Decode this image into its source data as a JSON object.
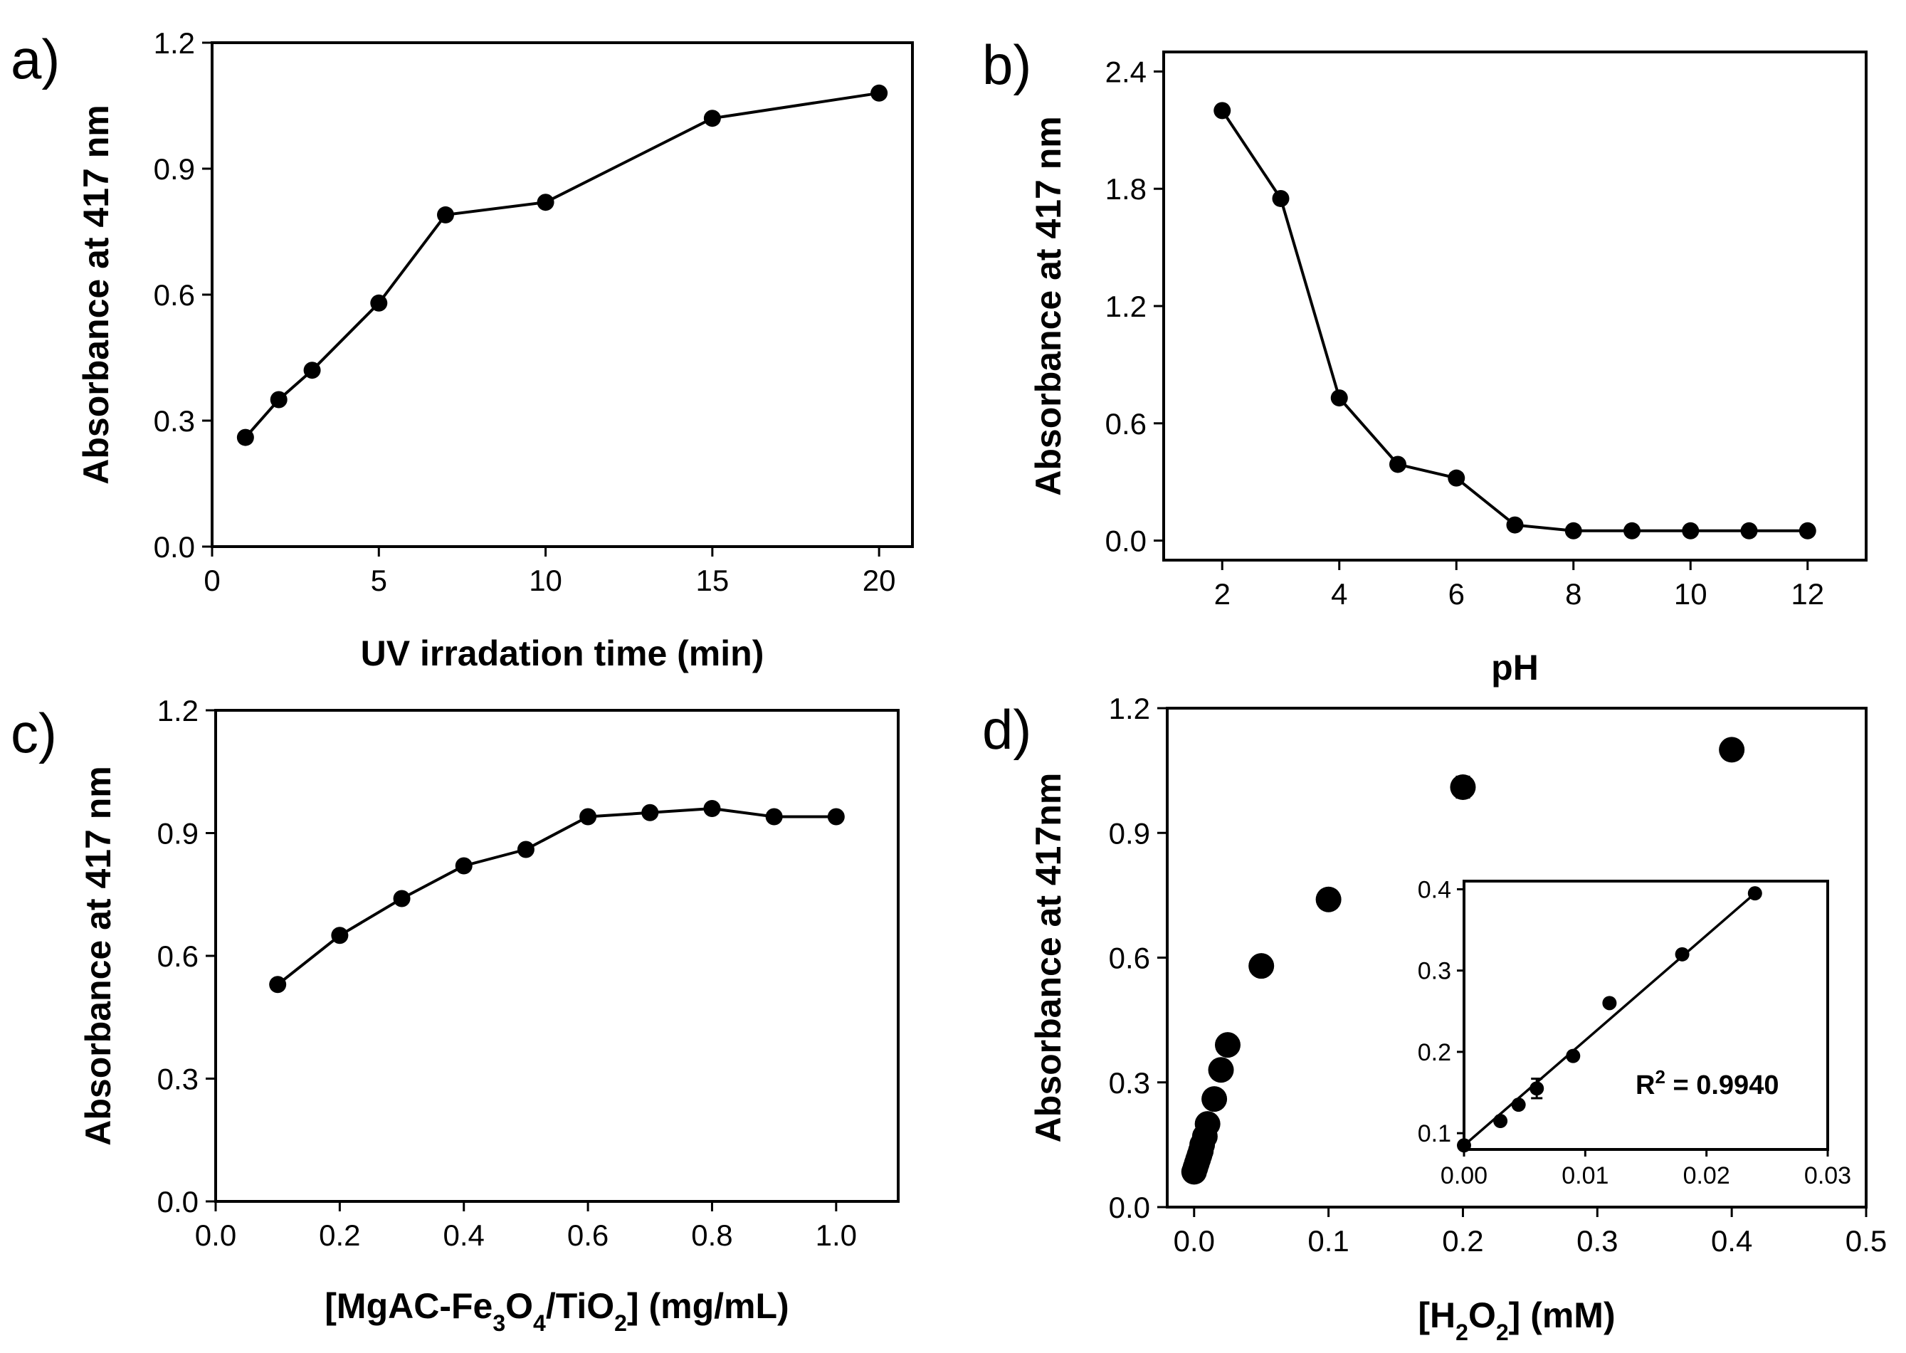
{
  "chart_data": [
    {
      "id": "a",
      "type": "line",
      "panel_label": "a)",
      "title": "",
      "xlabel": "UV irradation time (min)",
      "ylabel": "Absorbance at 417 nm",
      "xlim": [
        0,
        21
      ],
      "ylim": [
        0,
        1.2
      ],
      "xticks": [
        0,
        5,
        10,
        15,
        20
      ],
      "yticks": [
        0.0,
        0.3,
        0.6,
        0.9,
        1.2
      ],
      "xtick_labels": [
        "0",
        "5",
        "10",
        "15",
        "20"
      ],
      "ytick_labels": [
        "0.0",
        "0.3",
        "0.6",
        "0.9",
        "1.2"
      ],
      "connected": true,
      "series": [
        {
          "name": "absorbance",
          "x": [
            1,
            2,
            3,
            5,
            7,
            10,
            15,
            20
          ],
          "y": [
            0.26,
            0.35,
            0.42,
            0.58,
            0.79,
            0.82,
            1.02,
            1.08
          ]
        }
      ]
    },
    {
      "id": "b",
      "type": "line",
      "panel_label": "b)",
      "title": "",
      "xlabel": "pH",
      "ylabel": "Absorbance at 417 nm",
      "xlim": [
        1,
        13
      ],
      "ylim": [
        -0.1,
        2.5
      ],
      "xticks": [
        2,
        4,
        6,
        8,
        10,
        12
      ],
      "yticks": [
        0.0,
        0.6,
        1.2,
        1.8,
        2.4
      ],
      "xtick_labels": [
        "2",
        "4",
        "6",
        "8",
        "10",
        "12"
      ],
      "ytick_labels": [
        "0.0",
        "0.6",
        "1.2",
        "1.8",
        "2.4"
      ],
      "connected": true,
      "series": [
        {
          "name": "absorbance",
          "x": [
            2,
            3,
            4,
            5,
            6,
            7,
            8,
            9,
            10,
            11,
            12
          ],
          "y": [
            2.2,
            1.75,
            0.73,
            0.39,
            0.32,
            0.08,
            0.05,
            0.05,
            0.05,
            0.05,
            0.05
          ]
        }
      ]
    },
    {
      "id": "c",
      "type": "line",
      "panel_label": "c)",
      "title": "",
      "xlabel_parts": [
        {
          "t": "[MgAC-Fe"
        },
        {
          "t": "3",
          "sub": true
        },
        {
          "t": "O"
        },
        {
          "t": "4",
          "sub": true
        },
        {
          "t": "/TiO"
        },
        {
          "t": "2",
          "sub": true
        },
        {
          "t": "] (mg/mL)"
        }
      ],
      "ylabel": "Absorbance at 417 nm",
      "xlim": [
        0,
        1.1
      ],
      "ylim": [
        0,
        1.2
      ],
      "xticks": [
        0,
        0.2,
        0.4,
        0.6,
        0.8,
        1.0
      ],
      "yticks": [
        0.0,
        0.3,
        0.6,
        0.9,
        1.2
      ],
      "xtick_labels": [
        "0.0",
        "0.2",
        "0.4",
        "0.6",
        "0.8",
        "1.0"
      ],
      "ytick_labels": [
        "0.0",
        "0.3",
        "0.6",
        "0.9",
        "1.2"
      ],
      "connected": true,
      "series": [
        {
          "name": "absorbance",
          "x": [
            0.1,
            0.2,
            0.3,
            0.4,
            0.5,
            0.6,
            0.7,
            0.8,
            0.9,
            1.0
          ],
          "y": [
            0.53,
            0.65,
            0.74,
            0.82,
            0.86,
            0.94,
            0.95,
            0.96,
            0.94,
            0.94
          ]
        }
      ]
    },
    {
      "id": "d",
      "type": "scatter",
      "panel_label": "d)",
      "title": "",
      "xlabel_parts": [
        {
          "t": "[H"
        },
        {
          "t": "2",
          "sub": true
        },
        {
          "t": "O"
        },
        {
          "t": "2",
          "sub": true
        },
        {
          "t": "] (mM)"
        }
      ],
      "ylabel": "Absorbance at 417nm",
      "xlim": [
        -0.02,
        0.5
      ],
      "ylim": [
        0,
        1.2
      ],
      "xticks": [
        0,
        0.1,
        0.2,
        0.3,
        0.4,
        0.5
      ],
      "yticks": [
        0.0,
        0.3,
        0.6,
        0.9,
        1.2
      ],
      "xtick_labels": [
        "0.0",
        "0.1",
        "0.2",
        "0.3",
        "0.4",
        "0.5"
      ],
      "ytick_labels": [
        "0.0",
        "0.3",
        "0.6",
        "0.9",
        "1.2"
      ],
      "connected": false,
      "series": [
        {
          "name": "absorbance",
          "x": [
            0,
            0.001,
            0.002,
            0.003,
            0.004,
            0.005,
            0.006,
            0.008,
            0.01,
            0.015,
            0.02,
            0.025,
            0.05,
            0.1,
            0.2,
            0.4
          ],
          "y": [
            0.085,
            0.095,
            0.105,
            0.115,
            0.125,
            0.135,
            0.15,
            0.17,
            0.2,
            0.26,
            0.33,
            0.39,
            0.58,
            0.74,
            1.01,
            1.1
          ],
          "err": [
            0,
            0,
            0,
            0,
            0,
            0,
            0,
            0,
            0,
            0,
            0,
            0,
            0,
            0,
            0.025,
            0
          ]
        }
      ],
      "inset": {
        "type": "scatter",
        "xlim": [
          0,
          0.03
        ],
        "ylim": [
          0.08,
          0.41
        ],
        "xticks": [
          0,
          0.01,
          0.02,
          0.03
        ],
        "yticks": [
          0.1,
          0.2,
          0.3,
          0.4
        ],
        "xtick_labels": [
          "0.00",
          "0.01",
          "0.02",
          "0.03"
        ],
        "ytick_labels": [
          "0.1",
          "0.2",
          "0.3",
          "0.4"
        ],
        "x": [
          0,
          0.003,
          0.0045,
          0.006,
          0.009,
          0.012,
          0.018,
          0.024
        ],
        "y": [
          0.085,
          0.115,
          0.135,
          0.155,
          0.195,
          0.26,
          0.32,
          0.395
        ],
        "err": [
          0,
          0,
          0,
          0.012,
          0,
          0,
          0,
          0
        ],
        "fit": {
          "x": [
            0,
            0.024
          ],
          "y": [
            0.085,
            0.395
          ]
        },
        "annotation": {
          "text": "R",
          "sup": "2",
          "rest": " = 0.9940"
        }
      }
    }
  ]
}
